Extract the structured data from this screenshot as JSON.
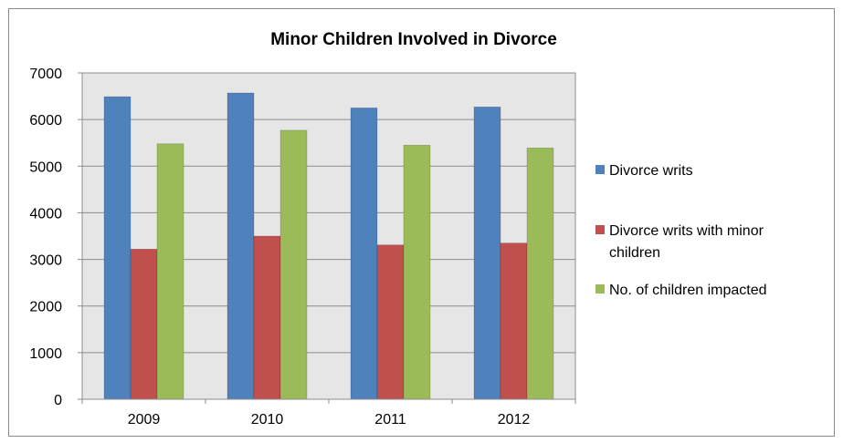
{
  "chart_data": {
    "type": "bar",
    "title": "Minor Children Involved in Divorce",
    "xlabel": "",
    "ylabel": "",
    "categories": [
      "2009",
      "2010",
      "2011",
      "2012"
    ],
    "ylim": [
      0,
      7000
    ],
    "yticks": [
      0,
      1000,
      2000,
      3000,
      4000,
      5000,
      6000,
      7000
    ],
    "grid": true,
    "legend_position": "right",
    "series": [
      {
        "name": "Divorce writs",
        "color": "#4f81bd",
        "values": [
          6490,
          6570,
          6250,
          6270
        ]
      },
      {
        "name": "Divorce writs with minor children",
        "color": "#c0504d",
        "values": [
          3220,
          3500,
          3310,
          3350
        ]
      },
      {
        "name": "No. of children impacted",
        "color": "#9bbb59",
        "values": [
          5480,
          5770,
          5450,
          5390
        ]
      }
    ]
  }
}
